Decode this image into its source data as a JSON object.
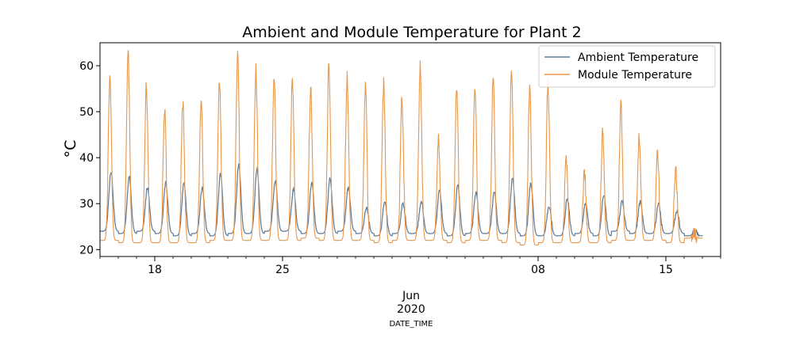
{
  "chart_data": {
    "type": "line",
    "title": "Ambient and Module Temperature for Plant 2",
    "ylabel": "°C",
    "xlabel": "DATE_TIME",
    "x_start": "2020-05-15",
    "x_end": "2020-06-18",
    "ylim": [
      18.5,
      65
    ],
    "yticks": [
      20,
      30,
      40,
      50,
      60
    ],
    "x_major_ticks": [
      {
        "date": "2020-05-18",
        "label": "18"
      },
      {
        "date": "2020-05-25",
        "label": "25"
      },
      {
        "date": "2020-06-08",
        "label": "08"
      },
      {
        "date": "2020-06-15",
        "label": "15"
      }
    ],
    "x_sub_label_month": "Jun",
    "x_sub_label_year": "2020",
    "grid": false,
    "legend_position": "top-right",
    "series": [
      {
        "name": "Ambient Temperature",
        "color": "#5a7896",
        "daily_max": [
          37.0,
          36.0,
          33.5,
          34.5,
          34.5,
          33.5,
          36.5,
          38.5,
          37.5,
          35.0,
          33.0,
          34.5,
          35.5,
          33.5,
          29.0,
          30.5,
          30.0,
          30.5,
          33.0,
          34.0,
          32.5,
          32.5,
          35.5,
          34.5,
          29.5,
          31.0,
          30.0,
          32.0,
          30.5,
          30.5,
          30.0,
          28.5,
          24.0
        ],
        "daily_min": [
          24.0,
          23.5,
          24.0,
          23.5,
          23.0,
          23.5,
          23.0,
          23.5,
          23.5,
          24.0,
          24.0,
          23.5,
          23.5,
          24.0,
          23.5,
          23.0,
          23.5,
          23.5,
          23.5,
          23.0,
          23.5,
          23.5,
          23.5,
          23.0,
          23.0,
          23.0,
          23.5,
          23.0,
          24.0,
          23.5,
          23.5,
          23.5,
          23.0
        ]
      },
      {
        "name": "Module Temperature",
        "color": "#e8964a",
        "daily_max": [
          58.0,
          63.0,
          56.0,
          50.0,
          52.0,
          53.0,
          57.5,
          63.0,
          59.0,
          57.5,
          57.0,
          55.0,
          60.5,
          58.0,
          55.5,
          56.0,
          53.0,
          60.0,
          44.5,
          55.0,
          56.0,
          57.5,
          59.5,
          55.5,
          56.0,
          40.0,
          37.0,
          46.0,
          51.5,
          44.5,
          41.5,
          37.5,
          24.0
        ],
        "daily_min": [
          22.0,
          21.5,
          21.5,
          21.5,
          21.5,
          21.5,
          22.0,
          22.0,
          22.0,
          22.0,
          22.0,
          22.5,
          22.0,
          22.0,
          22.0,
          21.5,
          22.0,
          22.0,
          22.0,
          21.5,
          22.0,
          22.0,
          21.5,
          21.0,
          21.5,
          21.5,
          21.5,
          21.5,
          22.0,
          22.0,
          22.0,
          21.5,
          22.5
        ]
      }
    ]
  }
}
